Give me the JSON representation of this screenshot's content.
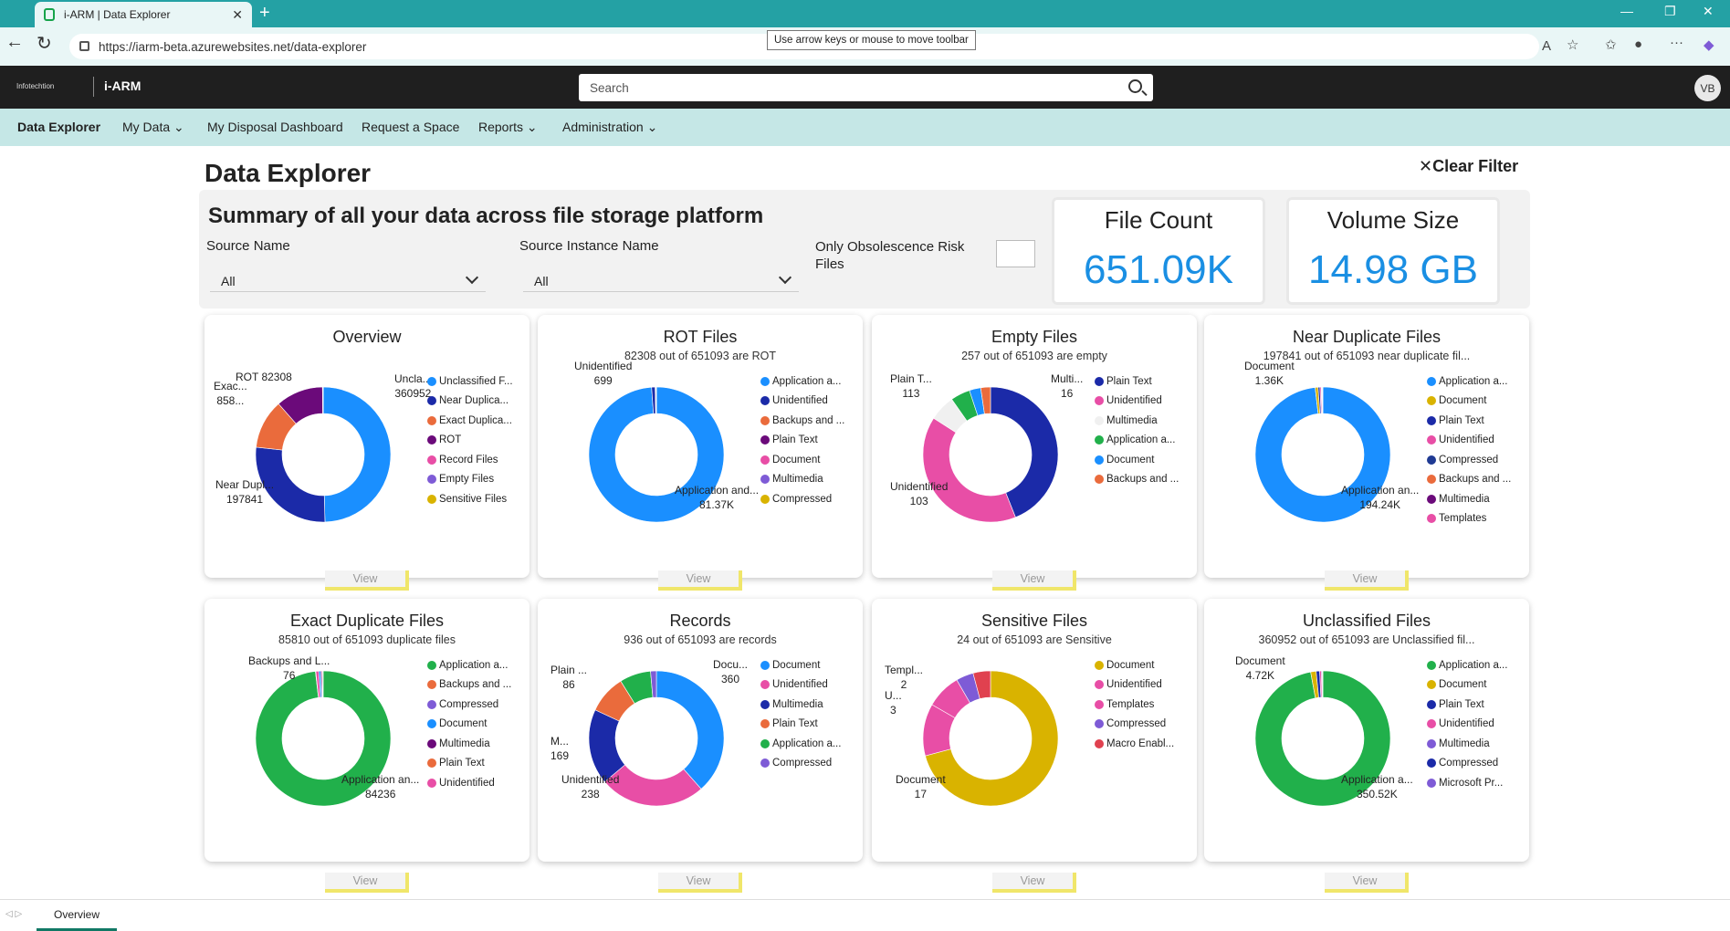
{
  "browser": {
    "tab_title": "i-ARM | Data Explorer",
    "url": "https://iarm-beta.azurewebsites.net/data-explorer",
    "tooltip": "Use arrow keys or mouse to move toolbar"
  },
  "header": {
    "company": "Infotechtion",
    "app_name": "i-ARM",
    "search_placeholder": "Search",
    "user_initials": "VB"
  },
  "menu": [
    {
      "label": "Data Explorer",
      "active": true
    },
    {
      "label": "My Data ⌄"
    },
    {
      "label": "My Disposal Dashboard"
    },
    {
      "label": "Request a Space"
    },
    {
      "label": "Reports ⌄"
    },
    {
      "label": "Administration ⌄"
    }
  ],
  "page": {
    "title": "Data Explorer",
    "clear_filter": "Clear Filter",
    "summary_title": "Summary of all your data across file storage platform",
    "source_name_label": "Source Name",
    "source_name_value": "All",
    "source_instance_label": "Source Instance Name",
    "source_instance_value": "All",
    "obsolescence_label_1": "Only Obsolescence Risk",
    "obsolescence_label_2": "Files",
    "file_count_label": "File Count",
    "file_count_value": "651.09K",
    "volume_size_label": "Volume Size",
    "volume_size_value": "14.98 GB"
  },
  "view_label": "View",
  "bottom_tab": "Overview",
  "chart_data": [
    {
      "type": "pie",
      "title": "Overview",
      "subtitle": "",
      "slices": [
        {
          "name": "Unclassified F...",
          "value": 360952,
          "color": "#1a8fff"
        },
        {
          "name": "Near Duplica...",
          "value": 197841,
          "color": "#1b2aa8"
        },
        {
          "name": "Exact Duplica...",
          "value": 85810,
          "color": "#ea6b3c"
        },
        {
          "name": "ROT",
          "value": 82308,
          "color": "#6b0a7a"
        },
        {
          "name": "Record Files",
          "value": 936,
          "color": "#e84ea6"
        },
        {
          "name": "Empty Files",
          "value": 257,
          "color": "#7e5bd6"
        },
        {
          "name": "Sensitive Files",
          "value": 24,
          "color": "#d9b300"
        }
      ],
      "data_labels": [
        "ROT 82308",
        "Exac...\n858...",
        "Uncla...\n360952",
        "Near Dupl...\n197841"
      ]
    },
    {
      "type": "pie",
      "title": "ROT Files",
      "subtitle": "82308 out of 651093 are ROT",
      "slices": [
        {
          "name": "Application a...",
          "value": 81370,
          "color": "#1a8fff"
        },
        {
          "name": "Unidentified",
          "value": 699,
          "color": "#1b2aa8"
        },
        {
          "name": "Backups and ...",
          "value": 120,
          "color": "#ea6b3c"
        },
        {
          "name": "Plain Text",
          "value": 60,
          "color": "#6b0a7a"
        },
        {
          "name": "Document",
          "value": 30,
          "color": "#e84ea6"
        },
        {
          "name": "Multimedia",
          "value": 20,
          "color": "#7e5bd6"
        },
        {
          "name": "Compressed",
          "value": 9,
          "color": "#d9b300"
        }
      ],
      "data_labels": [
        "Unidentified\n699",
        "Application and...\n81.37K"
      ]
    },
    {
      "type": "pie",
      "title": "Empty Files",
      "subtitle": "257 out of 651093 are empty",
      "slices": [
        {
          "name": "Plain Text",
          "value": 113,
          "color": "#1b2aa8"
        },
        {
          "name": "Unidentified",
          "value": 103,
          "color": "#e84ea6"
        },
        {
          "name": "Multimedia",
          "value": 16,
          "color": "#f0f0f0"
        },
        {
          "name": "Application a...",
          "value": 12,
          "color": "#21b04b"
        },
        {
          "name": "Document",
          "value": 7,
          "color": "#1a8fff"
        },
        {
          "name": "Backups and ...",
          "value": 6,
          "color": "#ea6b3c"
        }
      ],
      "data_labels": [
        "Plain T...\n113",
        "Multi...\n16",
        "Unidentified\n103"
      ]
    },
    {
      "type": "pie",
      "title": "Near Duplicate Files",
      "subtitle": "197841 out of 651093 near duplicate fil...",
      "slices": [
        {
          "name": "Application a...",
          "value": 194240,
          "color": "#1a8fff"
        },
        {
          "name": "Document",
          "value": 1360,
          "color": "#d9b300"
        },
        {
          "name": "Plain Text",
          "value": 900,
          "color": "#1b2aa8"
        },
        {
          "name": "Unidentified",
          "value": 600,
          "color": "#e84ea6"
        },
        {
          "name": "Compressed",
          "value": 300,
          "color": "#1f3a93"
        },
        {
          "name": "Backups and ...",
          "value": 200,
          "color": "#ea6b3c"
        },
        {
          "name": "Multimedia",
          "value": 150,
          "color": "#6b0a7a"
        },
        {
          "name": "Templates",
          "value": 91,
          "color": "#e84ea6"
        }
      ],
      "data_labels": [
        "Document\n1.36K",
        "Application an...\n194.24K"
      ]
    },
    {
      "type": "pie",
      "title": "Exact Duplicate Files",
      "subtitle": "85810 out of 651093 duplicate files",
      "slices": [
        {
          "name": "Application a...",
          "value": 84236,
          "color": "#21b04b"
        },
        {
          "name": "Backups and ...",
          "value": 76,
          "color": "#ea6b3c"
        },
        {
          "name": "Compressed",
          "value": 600,
          "color": "#e84ea6"
        },
        {
          "name": "Document",
          "value": 400,
          "color": "#1a8fff"
        },
        {
          "name": "Multimedia",
          "value": 250,
          "color": "#6b0a7a"
        },
        {
          "name": "Plain Text",
          "value": 150,
          "color": "#ea6b3c"
        },
        {
          "name": "Unidentified",
          "value": 98,
          "color": "#e84ea6"
        }
      ],
      "legend_colors": [
        "#21b04b",
        "#ea6b3c",
        "#7e5bd6",
        "#1a8fff",
        "#6b0a7a",
        "#ea6b3c",
        "#e84ea6"
      ],
      "data_labels": [
        "Backups and L...\n76",
        "Application an...\n84236"
      ]
    },
    {
      "type": "pie",
      "title": "Records",
      "subtitle": "936 out of 651093 are records",
      "slices": [
        {
          "name": "Document",
          "value": 360,
          "color": "#1a8fff"
        },
        {
          "name": "Unidentified",
          "value": 238,
          "color": "#e84ea6"
        },
        {
          "name": "Multimedia",
          "value": 169,
          "color": "#1b2aa8"
        },
        {
          "name": "Plain Text",
          "value": 86,
          "color": "#ea6b3c"
        },
        {
          "name": "Application a...",
          "value": 70,
          "color": "#21b04b"
        },
        {
          "name": "Compressed",
          "value": 13,
          "color": "#7e5bd6"
        }
      ],
      "data_labels": [
        "Plain ...\n86",
        "Docu...\n360",
        "M...\n169",
        "Unidentified\n238"
      ]
    },
    {
      "type": "pie",
      "title": "Sensitive Files",
      "subtitle": "24 out of 651093 are Sensitive",
      "slices": [
        {
          "name": "Document",
          "value": 17,
          "color": "#d9b300"
        },
        {
          "name": "Unidentified",
          "value": 3,
          "color": "#e84ea6"
        },
        {
          "name": "Templates",
          "value": 2,
          "color": "#e84ea6"
        },
        {
          "name": "Compressed",
          "value": 1,
          "color": "#7e5bd6"
        },
        {
          "name": "Macro Enabl...",
          "value": 1,
          "color": "#e0414f"
        }
      ],
      "legend_colors": [
        "#d9b300",
        "#e84ea6",
        "#e84ea6",
        "#7e5bd6",
        "#e0414f"
      ],
      "data_labels": [
        "Templ...\n2",
        "U...\n3",
        "Document\n17"
      ]
    },
    {
      "type": "pie",
      "title": "Unclassified Files",
      "subtitle": "360952 out of 651093 are Unclassified fil...",
      "slices": [
        {
          "name": "Application a...",
          "value": 350520,
          "color": "#21b04b"
        },
        {
          "name": "Document",
          "value": 4720,
          "color": "#d9b300"
        },
        {
          "name": "Plain Text",
          "value": 3000,
          "color": "#1b2aa8"
        },
        {
          "name": "Unidentified",
          "value": 1500,
          "color": "#e84ea6"
        },
        {
          "name": "Multimedia",
          "value": 700,
          "color": "#7e5bd6"
        },
        {
          "name": "Compressed",
          "value": 400,
          "color": "#1b2aa8"
        },
        {
          "name": "Microsoft Pr...",
          "value": 112,
          "color": "#7e5bd6"
        }
      ],
      "data_labels": [
        "Document\n4.72K",
        "Application a...\n350.52K"
      ]
    }
  ]
}
